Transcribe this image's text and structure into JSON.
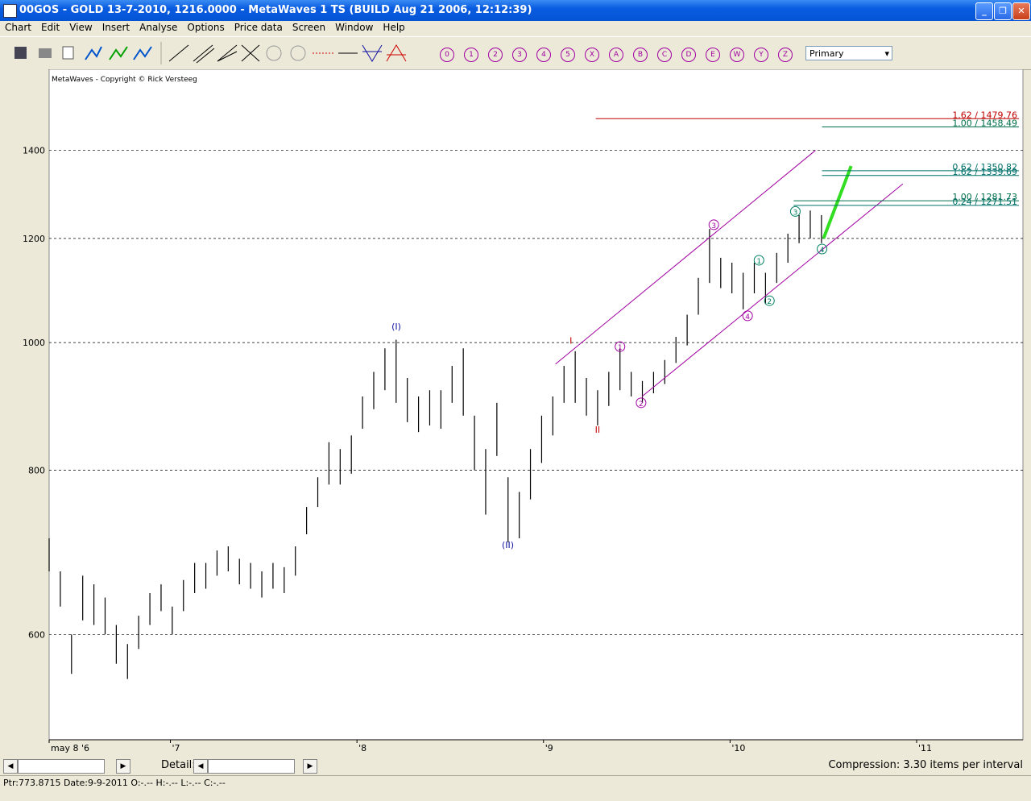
{
  "window": {
    "title": "00GOS - GOLD  13-7-2010, 1216.0000 - MetaWaves 1 TS       (BUILD Aug 21 2006, 12:12:39)"
  },
  "menu": [
    "Chart",
    "Edit",
    "View",
    "Insert",
    "Analyse",
    "Options",
    "Price data",
    "Screen",
    "Window",
    "Help"
  ],
  "toolbar": {
    "wave_buttons": [
      "0",
      "1",
      "2",
      "3",
      "4",
      "5",
      "X",
      "A",
      "B",
      "C",
      "D",
      "E",
      "W",
      "Y",
      "Z"
    ],
    "dropdown": "Primary"
  },
  "chart_data": {
    "type": "ohlc",
    "copyright": "MetaWaves - Copyright © Rick Versteeg",
    "color": "#000000",
    "log_scale": true,
    "grid": true,
    "x": [
      2006.35,
      2006.41,
      2006.47,
      2006.53,
      2006.59,
      2006.65,
      2006.71,
      2006.77,
      2006.83,
      2006.89,
      2006.95,
      2007.01,
      2007.07,
      2007.13,
      2007.19,
      2007.25,
      2007.31,
      2007.37,
      2007.43,
      2007.49,
      2007.55,
      2007.61,
      2007.67,
      2007.73,
      2007.79,
      2007.85,
      2007.91,
      2007.97,
      2008.03,
      2008.09,
      2008.15,
      2008.21,
      2008.27,
      2008.33,
      2008.39,
      2008.45,
      2008.51,
      2008.57,
      2008.63,
      2008.69,
      2008.75,
      2008.81,
      2008.87,
      2008.93,
      2008.99,
      2009.05,
      2009.11,
      2009.17,
      2009.23,
      2009.29,
      2009.35,
      2009.41,
      2009.47,
      2009.53,
      2009.59,
      2009.65,
      2009.71,
      2009.77,
      2009.83,
      2009.89,
      2009.95,
      2010.01,
      2010.07,
      2010.13,
      2010.19,
      2010.25,
      2010.31,
      2010.37,
      2010.43,
      2010.49
    ],
    "high": [
      710,
      670,
      600,
      665,
      655,
      640,
      610,
      590,
      620,
      645,
      655,
      630,
      660,
      680,
      680,
      695,
      700,
      685,
      680,
      670,
      680,
      675,
      700,
      750,
      790,
      840,
      830,
      850,
      910,
      950,
      990,
      1005,
      940,
      910,
      920,
      920,
      960,
      990,
      880,
      830,
      900,
      790,
      770,
      830,
      880,
      910,
      960,
      985,
      940,
      920,
      950,
      990,
      950,
      935,
      950,
      970,
      1010,
      1050,
      1120,
      1220,
      1160,
      1150,
      1130,
      1150,
      1130,
      1170,
      1210,
      1250,
      1260,
      1250
    ],
    "low": [
      670,
      630,
      560,
      615,
      610,
      600,
      570,
      555,
      585,
      610,
      625,
      600,
      625,
      645,
      650,
      665,
      670,
      655,
      650,
      640,
      650,
      645,
      665,
      715,
      750,
      780,
      780,
      795,
      860,
      890,
      920,
      900,
      870,
      855,
      865,
      860,
      900,
      880,
      800,
      740,
      820,
      705,
      710,
      760,
      810,
      850,
      900,
      900,
      880,
      865,
      895,
      920,
      910,
      900,
      915,
      930,
      965,
      995,
      1050,
      1110,
      1100,
      1090,
      1060,
      1090,
      1070,
      1110,
      1150,
      1190,
      1200,
      1190
    ],
    "xlim": [
      2006.35,
      2011.57
    ],
    "xticks": [
      {
        "value": 2006.35,
        "label": "may 8 '6"
      },
      {
        "value": 2007,
        "label": "'7"
      },
      {
        "value": 2008,
        "label": "'8"
      },
      {
        "value": 2009,
        "label": "'9"
      },
      {
        "value": 2010,
        "label": "'10"
      },
      {
        "value": 2011,
        "label": "'11"
      }
    ],
    "ylim": [
      499,
      1593
    ],
    "yticks": [
      600,
      800,
      1000,
      1200,
      1400
    ],
    "fib_levels": [
      {
        "label": "1.62 / 1479.76",
        "value": 1479.76,
        "from": 2009.28,
        "color": "#c00000"
      },
      {
        "label": "1.00 / 1458.49",
        "value": 1458.49,
        "from": 2010.493,
        "color": "#00704a"
      },
      {
        "label": "0.62 / 1350.82",
        "value": 1350.82,
        "from": 2010.493,
        "color": "#00706a"
      },
      {
        "label": "1.62 / 1339.69",
        "value": 1339.69,
        "from": 2010.493,
        "color": "#00706a"
      },
      {
        "label": "1.00 / 1281.73",
        "value": 1281.73,
        "from": 2010.341,
        "color": "#00704a"
      },
      {
        "label": "0.24 / 1271.51",
        "value": 1271.51,
        "from": 2010.341,
        "color": "#00706a"
      }
    ],
    "channel_lines": [
      {
        "x": [
          2009.064,
          2010.458
        ],
        "y": [
          963,
          1400
        ],
        "color": "#a000a0"
      },
      {
        "x": [
          2009.528,
          2010.926
        ],
        "y": [
          910,
          1320
        ],
        "color": "#a000a0"
      }
    ],
    "projection": {
      "x": [
        2010.501,
        2010.649
      ],
      "y": [
        1200,
        1362
      ],
      "color": "#33dd22"
    },
    "wave_labels": [
      {
        "text": "(I)",
        "x": 2008.211,
        "y": 1029,
        "color": "#1010a0",
        "circled": false
      },
      {
        "text": "(II)",
        "x": 2008.809,
        "y": 702,
        "color": "#1010a0",
        "circled": false
      },
      {
        "text": "I",
        "x": 2009.147,
        "y": 1004,
        "color": "#c00000",
        "circled": false
      },
      {
        "text": "II",
        "x": 2009.29,
        "y": 859,
        "color": "#c00000",
        "circled": false
      },
      {
        "text": "1",
        "x": 2009.41,
        "y": 993,
        "color": "#a000a0",
        "circled": true
      },
      {
        "text": "2",
        "x": 2009.523,
        "y": 900,
        "color": "#a000a0",
        "circled": true
      },
      {
        "text": "3",
        "x": 2009.913,
        "y": 1229,
        "color": "#a000a0",
        "circled": true
      },
      {
        "text": "4",
        "x": 2010.094,
        "y": 1048,
        "color": "#a000a0",
        "circled": true
      },
      {
        "text": "1",
        "x": 2010.155,
        "y": 1155,
        "color": "#008060",
        "circled": true
      },
      {
        "text": "2",
        "x": 2010.211,
        "y": 1076,
        "color": "#008060",
        "circled": true
      },
      {
        "text": "3",
        "x": 2010.35,
        "y": 1258,
        "color": "#008060",
        "circled": true
      },
      {
        "text": "4",
        "x": 2010.493,
        "y": 1178,
        "color": "#008060",
        "circled": true
      }
    ]
  },
  "scrollbar": {
    "detail_label": "Detail:",
    "compression": "Compression: 3.30 items per interval"
  },
  "status_bar": "Ptr:773.8715  Date:9-9-2011  O:-.--  H:-.--  L:-.--  C:-.--"
}
